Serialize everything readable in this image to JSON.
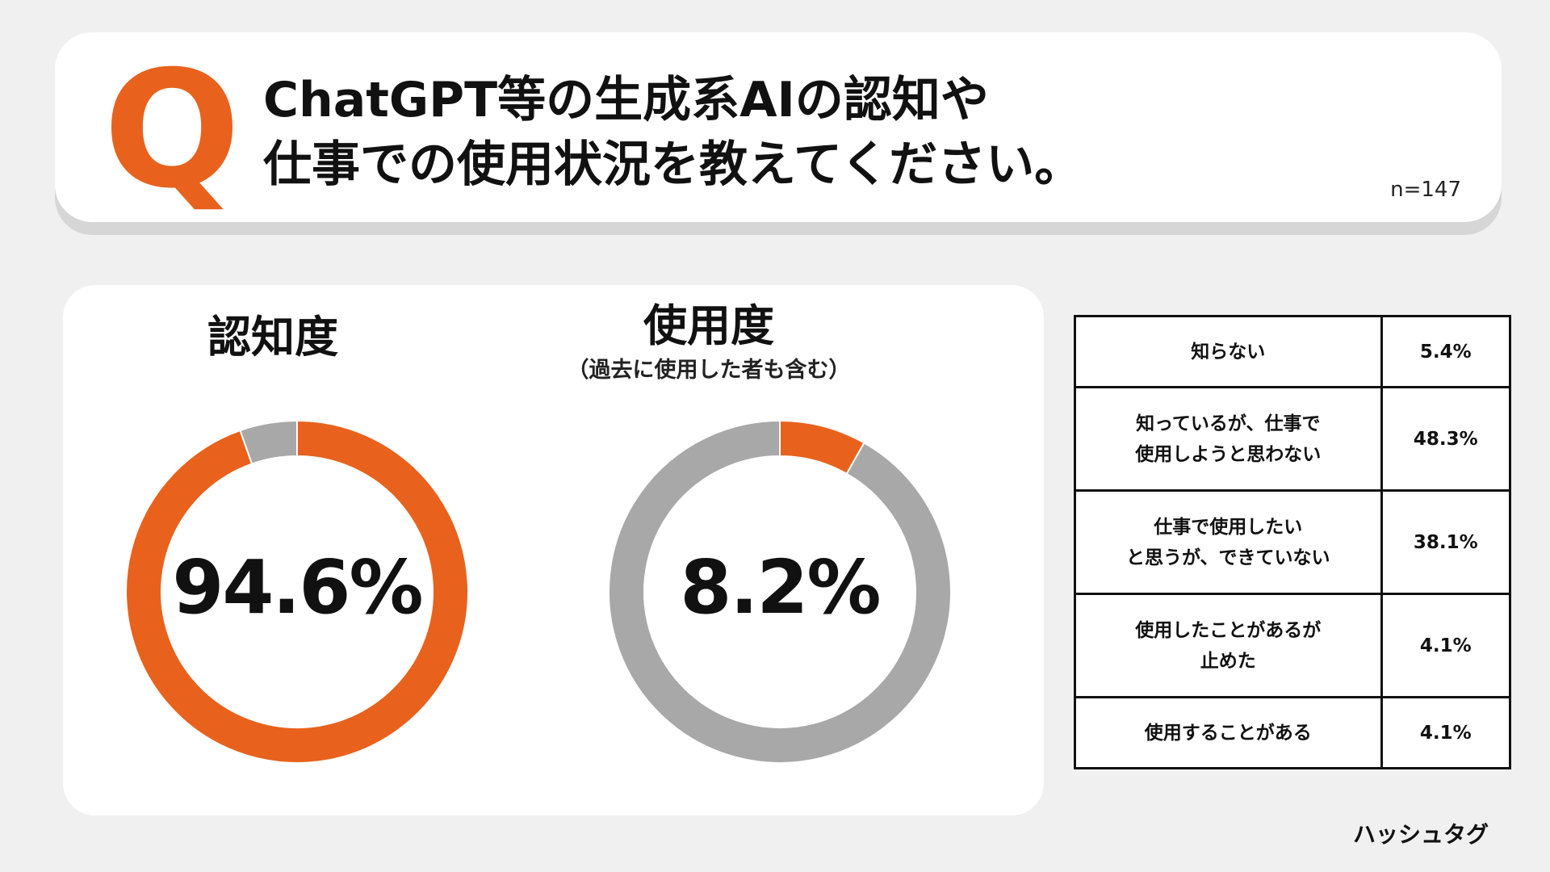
{
  "question": {
    "letter": "Q",
    "title": "ChatGPT等の生成系AIの認知や\n仕事での使用状況を教えてください。",
    "n": "n=147"
  },
  "colors": {
    "accent": "#e8621d",
    "rest": "#a8a8a8"
  },
  "chart_data": [
    {
      "type": "pie",
      "title": "認知度",
      "subtitle": "",
      "center_label": "94.6%",
      "slices": [
        {
          "label": "",
          "value": 94.6,
          "color": "#e8621d"
        },
        {
          "label": "",
          "value": 5.4,
          "color": "#a8a8a8"
        }
      ]
    },
    {
      "type": "pie",
      "title": "使用度",
      "subtitle": "（過去に使用した者も含む）",
      "center_label": "8.2%",
      "slices": [
        {
          "label": "",
          "value": 8.2,
          "color": "#e8621d"
        },
        {
          "label": "",
          "value": 91.8,
          "color": "#a8a8a8"
        }
      ]
    },
    {
      "type": "table",
      "rows": [
        {
          "label": "知らない",
          "value": "5.4%"
        },
        {
          "label": "知っているが、仕事で\n使用しようと思わない",
          "value": "48.3%"
        },
        {
          "label": "仕事で使用したい\nと思うが、できていない",
          "value": "38.1%"
        },
        {
          "label": "使用したことがあるが\n止めた",
          "value": "4.1%"
        },
        {
          "label": "使用することがある",
          "value": "4.1%"
        }
      ]
    }
  ],
  "brand": "ハッシュタグ"
}
